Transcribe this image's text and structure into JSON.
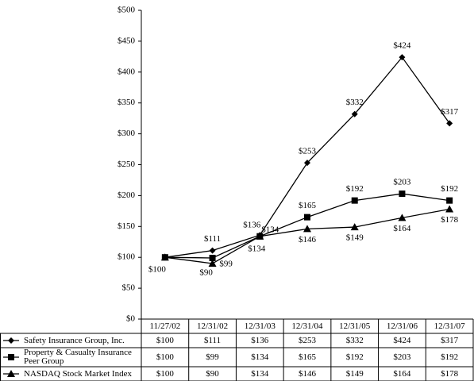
{
  "chart_data": {
    "type": "line",
    "categories": [
      "11/27/02",
      "12/31/02",
      "12/31/03",
      "12/31/04",
      "12/31/05",
      "12/31/06",
      "12/31/07"
    ],
    "series": [
      {
        "name": "Safety Insurance Group, Inc.",
        "color": "#000000",
        "marker": "diamond",
        "values": [
          100,
          111,
          136,
          253,
          332,
          424,
          317
        ],
        "value_labels": [
          "$100",
          "$111",
          "$136",
          "$253",
          "$332",
          "$424",
          "$317"
        ]
      },
      {
        "name": "Property & Casualty Insurance Peer Group",
        "color": "#000000",
        "marker": "square",
        "values": [
          100,
          99,
          134,
          165,
          192,
          203,
          192
        ],
        "value_labels": [
          "$100",
          "$99",
          "$134",
          "$165",
          "$192",
          "$203",
          "$192"
        ]
      },
      {
        "name": "NASDAQ Stock Market Index",
        "color": "#000000",
        "marker": "triangle",
        "values": [
          100,
          90,
          134,
          146,
          149,
          164,
          178
        ],
        "value_labels": [
          "$100",
          "$90",
          "$134",
          "$146",
          "$149",
          "$164",
          "$178"
        ]
      }
    ],
    "ylim": [
      0,
      500
    ],
    "yticks": [
      {
        "value": 0,
        "label": "$0"
      },
      {
        "value": 50,
        "label": "$50"
      },
      {
        "value": 100,
        "label": "$100"
      },
      {
        "value": 150,
        "label": "$150"
      },
      {
        "value": 200,
        "label": "$200"
      },
      {
        "value": 250,
        "label": "$250"
      },
      {
        "value": 300,
        "label": "$300"
      },
      {
        "value": 350,
        "label": "$350"
      },
      {
        "value": 400,
        "label": "$400"
      },
      {
        "value": 450,
        "label": "$450"
      },
      {
        "value": 500,
        "label": "$500"
      }
    ]
  }
}
